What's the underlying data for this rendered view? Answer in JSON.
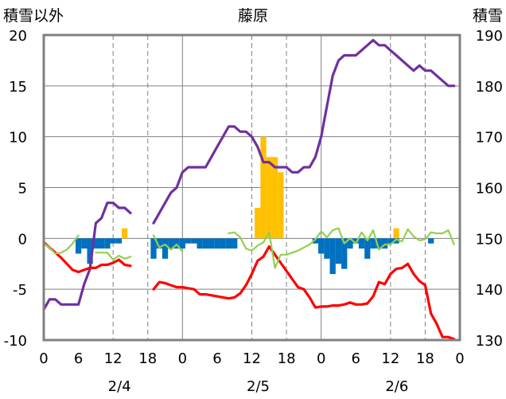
{
  "chart_data": {
    "type": "line",
    "title": "藤原",
    "ylabel_left": "積雪以外",
    "ylabel_right": "積雪",
    "y_left": {
      "min": -10,
      "max": 20,
      "ticks": [
        -10,
        -5,
        0,
        5,
        10,
        15,
        20
      ]
    },
    "y_right": {
      "min": 130,
      "max": 190,
      "ticks": [
        130,
        140,
        150,
        160,
        170,
        180,
        190
      ]
    },
    "x": {
      "min": 0,
      "max": 72,
      "tick_hours": [
        0,
        6,
        12,
        18,
        24,
        30,
        36,
        42,
        48,
        54,
        60,
        66,
        72
      ],
      "tick_labels": [
        "0",
        "6",
        "12",
        "18",
        "0",
        "6",
        "12",
        "18",
        "0",
        "6",
        "12",
        "18",
        "0"
      ]
    },
    "date_labels": [
      {
        "hour": 12,
        "label": "2/4"
      },
      {
        "hour": 36,
        "label": "2/5"
      },
      {
        "hour": 60,
        "label": "2/6"
      }
    ],
    "day_lines": [
      24,
      48
    ],
    "dashed_lines": [
      12,
      18,
      36,
      42,
      60,
      66
    ],
    "colors": {
      "snow_depth": "#7030a0",
      "temperature": "#ff0000",
      "wind": "#92d050",
      "precip": "#ffc000",
      "deficit": "#0070c0",
      "frame": "#808080",
      "grid": "#808080"
    },
    "series": [
      {
        "key": "snow_depth",
        "axis": "right",
        "points": [
          [
            0,
            136
          ],
          [
            1,
            138
          ],
          [
            2,
            138
          ],
          [
            3,
            137
          ],
          [
            4,
            137
          ],
          [
            5,
            137
          ],
          [
            6,
            137
          ],
          [
            7,
            141
          ],
          [
            8,
            144
          ],
          [
            9,
            153
          ],
          [
            10,
            154
          ],
          [
            11,
            157
          ],
          [
            12,
            157
          ],
          [
            13,
            156
          ],
          [
            14,
            156
          ],
          [
            15,
            155
          ],
          [
            null,
            null
          ],
          [
            19,
            153
          ],
          [
            20,
            155
          ],
          [
            21,
            157
          ],
          [
            22,
            159
          ],
          [
            23,
            160
          ],
          [
            24,
            163
          ],
          [
            25,
            164
          ],
          [
            26,
            164
          ],
          [
            27,
            164
          ],
          [
            28,
            164
          ],
          [
            29,
            166
          ],
          [
            30,
            168
          ],
          [
            31,
            170
          ],
          [
            32,
            172
          ],
          [
            33,
            172
          ],
          [
            34,
            171
          ],
          [
            35,
            171
          ],
          [
            36,
            170
          ],
          [
            37,
            168
          ],
          [
            38,
            165
          ],
          [
            39,
            165
          ],
          [
            40,
            164
          ],
          [
            41,
            164
          ],
          [
            42,
            164
          ],
          [
            43,
            163
          ],
          [
            44,
            163
          ],
          [
            45,
            164
          ],
          [
            46,
            164
          ],
          [
            47,
            166
          ],
          [
            48,
            170
          ],
          [
            49,
            176
          ],
          [
            50,
            182
          ],
          [
            51,
            185
          ],
          [
            52,
            186
          ],
          [
            53,
            186
          ],
          [
            54,
            186
          ],
          [
            55,
            187
          ],
          [
            56,
            188
          ],
          [
            57,
            189
          ],
          [
            58,
            188
          ],
          [
            59,
            188
          ],
          [
            60,
            187
          ],
          [
            61,
            186
          ],
          [
            62,
            185
          ],
          [
            63,
            184
          ],
          [
            64,
            183
          ],
          [
            65,
            184
          ],
          [
            66,
            183
          ],
          [
            67,
            183
          ],
          [
            68,
            182
          ],
          [
            69,
            181
          ],
          [
            70,
            180
          ],
          [
            71,
            180
          ]
        ]
      },
      {
        "key": "temperature",
        "axis": "left",
        "points": [
          [
            0,
            -0.4
          ],
          [
            1,
            -0.9
          ],
          [
            2,
            -1.4
          ],
          [
            3,
            -1.9
          ],
          [
            4,
            -2.5
          ],
          [
            5,
            -3.1
          ],
          [
            6,
            -3.3
          ],
          [
            7,
            -3.1
          ],
          [
            8,
            -2.9
          ],
          [
            9,
            -2.9
          ],
          [
            10,
            -2.6
          ],
          [
            11,
            -2.6
          ],
          [
            12,
            -2.4
          ],
          [
            13,
            -2.1
          ],
          [
            14,
            -2.6
          ],
          [
            15,
            -2.7
          ],
          [
            null,
            null
          ],
          [
            19,
            -5.0
          ],
          [
            20,
            -4.3
          ],
          [
            21,
            -4.4
          ],
          [
            22,
            -4.6
          ],
          [
            23,
            -4.8
          ],
          [
            24,
            -4.8
          ],
          [
            25,
            -4.9
          ],
          [
            26,
            -5.0
          ],
          [
            27,
            -5.5
          ],
          [
            28,
            -5.5
          ],
          [
            29,
            -5.6
          ],
          [
            30,
            -5.7
          ],
          [
            31,
            -5.8
          ],
          [
            32,
            -5.9
          ],
          [
            33,
            -5.8
          ],
          [
            34,
            -5.4
          ],
          [
            35,
            -4.6
          ],
          [
            36,
            -3.5
          ],
          [
            37,
            -2.2
          ],
          [
            38,
            -1.8
          ],
          [
            39,
            -0.8
          ],
          [
            40,
            -1.6
          ],
          [
            41,
            -2.4
          ],
          [
            42,
            -3.2
          ],
          [
            43,
            -4.0
          ],
          [
            44,
            -4.8
          ],
          [
            45,
            -5.0
          ],
          [
            46,
            -5.8
          ],
          [
            47,
            -6.8
          ],
          [
            48,
            -6.7
          ],
          [
            49,
            -6.7
          ],
          [
            50,
            -6.6
          ],
          [
            51,
            -6.6
          ],
          [
            52,
            -6.5
          ],
          [
            53,
            -6.3
          ],
          [
            54,
            -6.5
          ],
          [
            55,
            -6.5
          ],
          [
            56,
            -6.4
          ],
          [
            57,
            -5.7
          ],
          [
            58,
            -4.3
          ],
          [
            59,
            -4.5
          ],
          [
            60,
            -3.5
          ],
          [
            61,
            -3.0
          ],
          [
            62,
            -2.9
          ],
          [
            63,
            -2.5
          ],
          [
            64,
            -3.5
          ],
          [
            65,
            -4.2
          ],
          [
            66,
            -4.6
          ],
          [
            67,
            -7.4
          ],
          [
            68,
            -8.4
          ],
          [
            69,
            -9.7
          ],
          [
            70,
            -9.7
          ],
          [
            71,
            -9.9
          ]
        ]
      },
      {
        "key": "wind",
        "axis": "left",
        "points": [
          [
            0,
            -0.5
          ],
          [
            1,
            -0.9
          ],
          [
            2,
            -1.5
          ],
          [
            3,
            -1.4
          ],
          [
            4,
            -1.1
          ],
          [
            5,
            -0.5
          ],
          [
            6,
            0.3
          ],
          [
            null,
            null
          ],
          [
            9,
            -1.4
          ],
          [
            10,
            -1.4
          ],
          [
            11,
            -1.4
          ],
          [
            12,
            -2.1
          ],
          [
            13,
            -1.7
          ],
          [
            14,
            -2.0
          ],
          [
            15,
            -1.8
          ],
          [
            null,
            null
          ],
          [
            19,
            0.3
          ],
          [
            20,
            -0.9
          ],
          [
            21,
            -0.6
          ],
          [
            22,
            -1.1
          ],
          [
            23,
            -0.6
          ],
          [
            24,
            -1.3
          ],
          [
            null,
            null
          ],
          [
            32,
            0.5
          ],
          [
            33,
            0.6
          ],
          [
            34,
            0.1
          ],
          [
            35,
            -1.0
          ],
          [
            36,
            -1.2
          ],
          [
            37,
            -0.7
          ],
          [
            38,
            -0.4
          ],
          [
            39,
            0.6
          ],
          [
            40,
            -2.9
          ],
          [
            41,
            -1.6
          ],
          [
            42,
            -1.6
          ],
          [
            43,
            -1.4
          ],
          [
            44,
            -1.2
          ],
          [
            45,
            -0.9
          ],
          [
            46,
            -0.6
          ],
          [
            47,
            -0.1
          ],
          [
            48,
            0.7
          ],
          [
            49,
            0.1
          ],
          [
            50,
            0.8
          ],
          [
            51,
            1.0
          ],
          [
            52,
            -0.5
          ],
          [
            53,
            0.0
          ],
          [
            54,
            -0.5
          ],
          [
            55,
            0.6
          ],
          [
            56,
            -0.2
          ],
          [
            57,
            0.8
          ],
          [
            58,
            -1.1
          ],
          [
            59,
            -0.6
          ],
          [
            60,
            -0.6
          ],
          [
            61,
            -0.1
          ],
          [
            62,
            -0.3
          ],
          [
            63,
            0.9
          ],
          [
            64,
            0.2
          ],
          [
            65,
            -0.2
          ],
          [
            66,
            -0.1
          ],
          [
            67,
            0.6
          ],
          [
            68,
            0.5
          ],
          [
            69,
            0.5
          ],
          [
            70,
            0.8
          ],
          [
            71,
            -0.6
          ]
        ]
      }
    ],
    "bars": [
      {
        "key": "precip",
        "axis": "left",
        "values": [
          [
            14,
            1.0
          ],
          [
            37,
            3.0
          ],
          [
            38,
            10.0
          ],
          [
            39,
            8.0
          ],
          [
            40,
            8.0
          ],
          [
            41,
            6.5
          ],
          [
            61,
            1.0
          ]
        ]
      },
      {
        "key": "deficit",
        "axis": "left",
        "values": [
          [
            6,
            -1.5
          ],
          [
            7,
            -1.0
          ],
          [
            8,
            -2.5
          ],
          [
            9,
            -1.0
          ],
          [
            10,
            -1.0
          ],
          [
            11,
            -1.0
          ],
          [
            12,
            -0.5
          ],
          [
            13,
            -0.5
          ],
          [
            19,
            -2.0
          ],
          [
            20,
            -1.0
          ],
          [
            21,
            -2.0
          ],
          [
            22,
            -1.0
          ],
          [
            23,
            -1.0
          ],
          [
            24,
            -1.0
          ],
          [
            25,
            -0.5
          ],
          [
            26,
            -0.5
          ],
          [
            27,
            -1.0
          ],
          [
            28,
            -1.0
          ],
          [
            29,
            -1.0
          ],
          [
            30,
            -1.0
          ],
          [
            31,
            -1.0
          ],
          [
            32,
            -1.0
          ],
          [
            33,
            -1.0
          ],
          [
            47,
            -0.5
          ],
          [
            48,
            -1.5
          ],
          [
            49,
            -2.0
          ],
          [
            50,
            -3.5
          ],
          [
            51,
            -2.5
          ],
          [
            52,
            -3.0
          ],
          [
            53,
            -1.0
          ],
          [
            54,
            -0.5
          ],
          [
            55,
            -1.0
          ],
          [
            56,
            -2.0
          ],
          [
            57,
            -1.0
          ],
          [
            58,
            -1.0
          ],
          [
            59,
            -1.0
          ],
          [
            60,
            -0.5
          ],
          [
            61,
            -0.5
          ],
          [
            67,
            -0.5
          ]
        ]
      }
    ]
  }
}
